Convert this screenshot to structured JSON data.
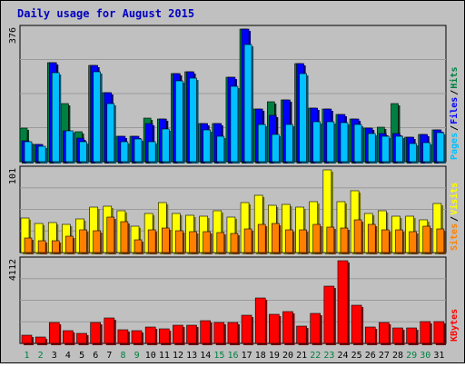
{
  "title": "Daily usage for August 2015",
  "colors": {
    "background": "#C0C0C0",
    "title": "#0000C0",
    "hits": "#008040",
    "files": "#0000FF",
    "pages": "#00C0FF",
    "visits": "#FFFF00",
    "sites": "#FF8000",
    "kbytes": "#FF0000",
    "grid": "#9A9A9A"
  },
  "chart_data": [
    {
      "type": "bar",
      "panel": "hits-files-pages",
      "ymax_label": "376",
      "ymax": 376,
      "categories": [
        "1",
        "2",
        "3",
        "4",
        "5",
        "6",
        "7",
        "8",
        "9",
        "10",
        "11",
        "12",
        "13",
        "14",
        "15",
        "16",
        "17",
        "18",
        "19",
        "20",
        "21",
        "22",
        "23",
        "24",
        "25",
        "26",
        "27",
        "28",
        "29",
        "30",
        "31"
      ],
      "weekend_days": [
        "1",
        "2",
        "8",
        "9",
        "15",
        "16",
        "22",
        "23",
        "29",
        "30"
      ],
      "series": [
        {
          "name": "Hits",
          "values": [
            94,
            50,
            281,
            166,
            85,
            272,
            196,
            71,
            72,
            123,
            121,
            250,
            254,
            108,
            108,
            239,
            376,
            149,
            170,
            176,
            277,
            152,
            149,
            133,
            121,
            95,
            98,
            166,
            70,
            78,
            91
          ]
        },
        {
          "name": "Files",
          "values": [
            60,
            50,
            281,
            88,
            67,
            272,
            196,
            71,
            72,
            109,
            121,
            250,
            254,
            108,
            108,
            239,
            376,
            149,
            131,
            176,
            277,
            152,
            149,
            133,
            121,
            95,
            79,
            80,
            70,
            78,
            91
          ]
        },
        {
          "name": "Pages",
          "values": [
            56,
            43,
            253,
            88,
            56,
            256,
            165,
            56,
            64,
            56,
            93,
            228,
            237,
            89,
            72,
            214,
            333,
            105,
            78,
            106,
            250,
            113,
            113,
            112,
            106,
            79,
            73,
            72,
            52,
            55,
            83
          ]
        }
      ],
      "legend": [
        "Pages",
        "/",
        "Files",
        "/",
        "Hits"
      ]
    },
    {
      "type": "bar",
      "panel": "visits-sites",
      "ymax_label": "101",
      "ymax": 101,
      "categories": [
        "1",
        "2",
        "3",
        "4",
        "5",
        "6",
        "7",
        "8",
        "9",
        "10",
        "11",
        "12",
        "13",
        "14",
        "15",
        "16",
        "17",
        "18",
        "19",
        "20",
        "21",
        "22",
        "23",
        "24",
        "25",
        "26",
        "27",
        "28",
        "29",
        "30",
        "31"
      ],
      "series": [
        {
          "name": "Visits",
          "values": [
            42,
            35,
            37,
            34,
            41,
            56,
            57,
            51,
            32,
            48,
            61,
            48,
            45,
            44,
            51,
            43,
            61,
            70,
            58,
            59,
            55,
            62,
            101,
            62,
            75,
            48,
            51,
            44,
            44,
            40,
            60
          ]
        },
        {
          "name": "Sites",
          "values": [
            18,
            14,
            14,
            20,
            28,
            27,
            43,
            38,
            16,
            28,
            30,
            27,
            25,
            25,
            24,
            23,
            29,
            34,
            35,
            28,
            28,
            34,
            31,
            30,
            40,
            34,
            28,
            28,
            25,
            32,
            29
          ]
        }
      ],
      "legend": [
        "Sites",
        "/",
        "Visits"
      ]
    },
    {
      "type": "bar",
      "panel": "kbytes",
      "ymax_label": "4112",
      "ymax": 4112,
      "categories": [
        "1",
        "2",
        "3",
        "4",
        "5",
        "6",
        "7",
        "8",
        "9",
        "10",
        "11",
        "12",
        "13",
        "14",
        "15",
        "16",
        "17",
        "18",
        "19",
        "20",
        "21",
        "22",
        "23",
        "24",
        "25",
        "26",
        "27",
        "28",
        "29",
        "30",
        "31"
      ],
      "series": [
        {
          "name": "KBytes",
          "values": [
            396,
            336,
            1049,
            628,
            509,
            1049,
            1254,
            683,
            620,
            830,
            732,
            888,
            888,
            1133,
            1030,
            1030,
            1411,
            2252,
            1462,
            1568,
            848,
            1504,
            2860,
            4112,
            1917,
            808,
            1030,
            780,
            782,
            1081,
            1076
          ]
        }
      ],
      "legend": [
        "KBytes"
      ]
    }
  ]
}
